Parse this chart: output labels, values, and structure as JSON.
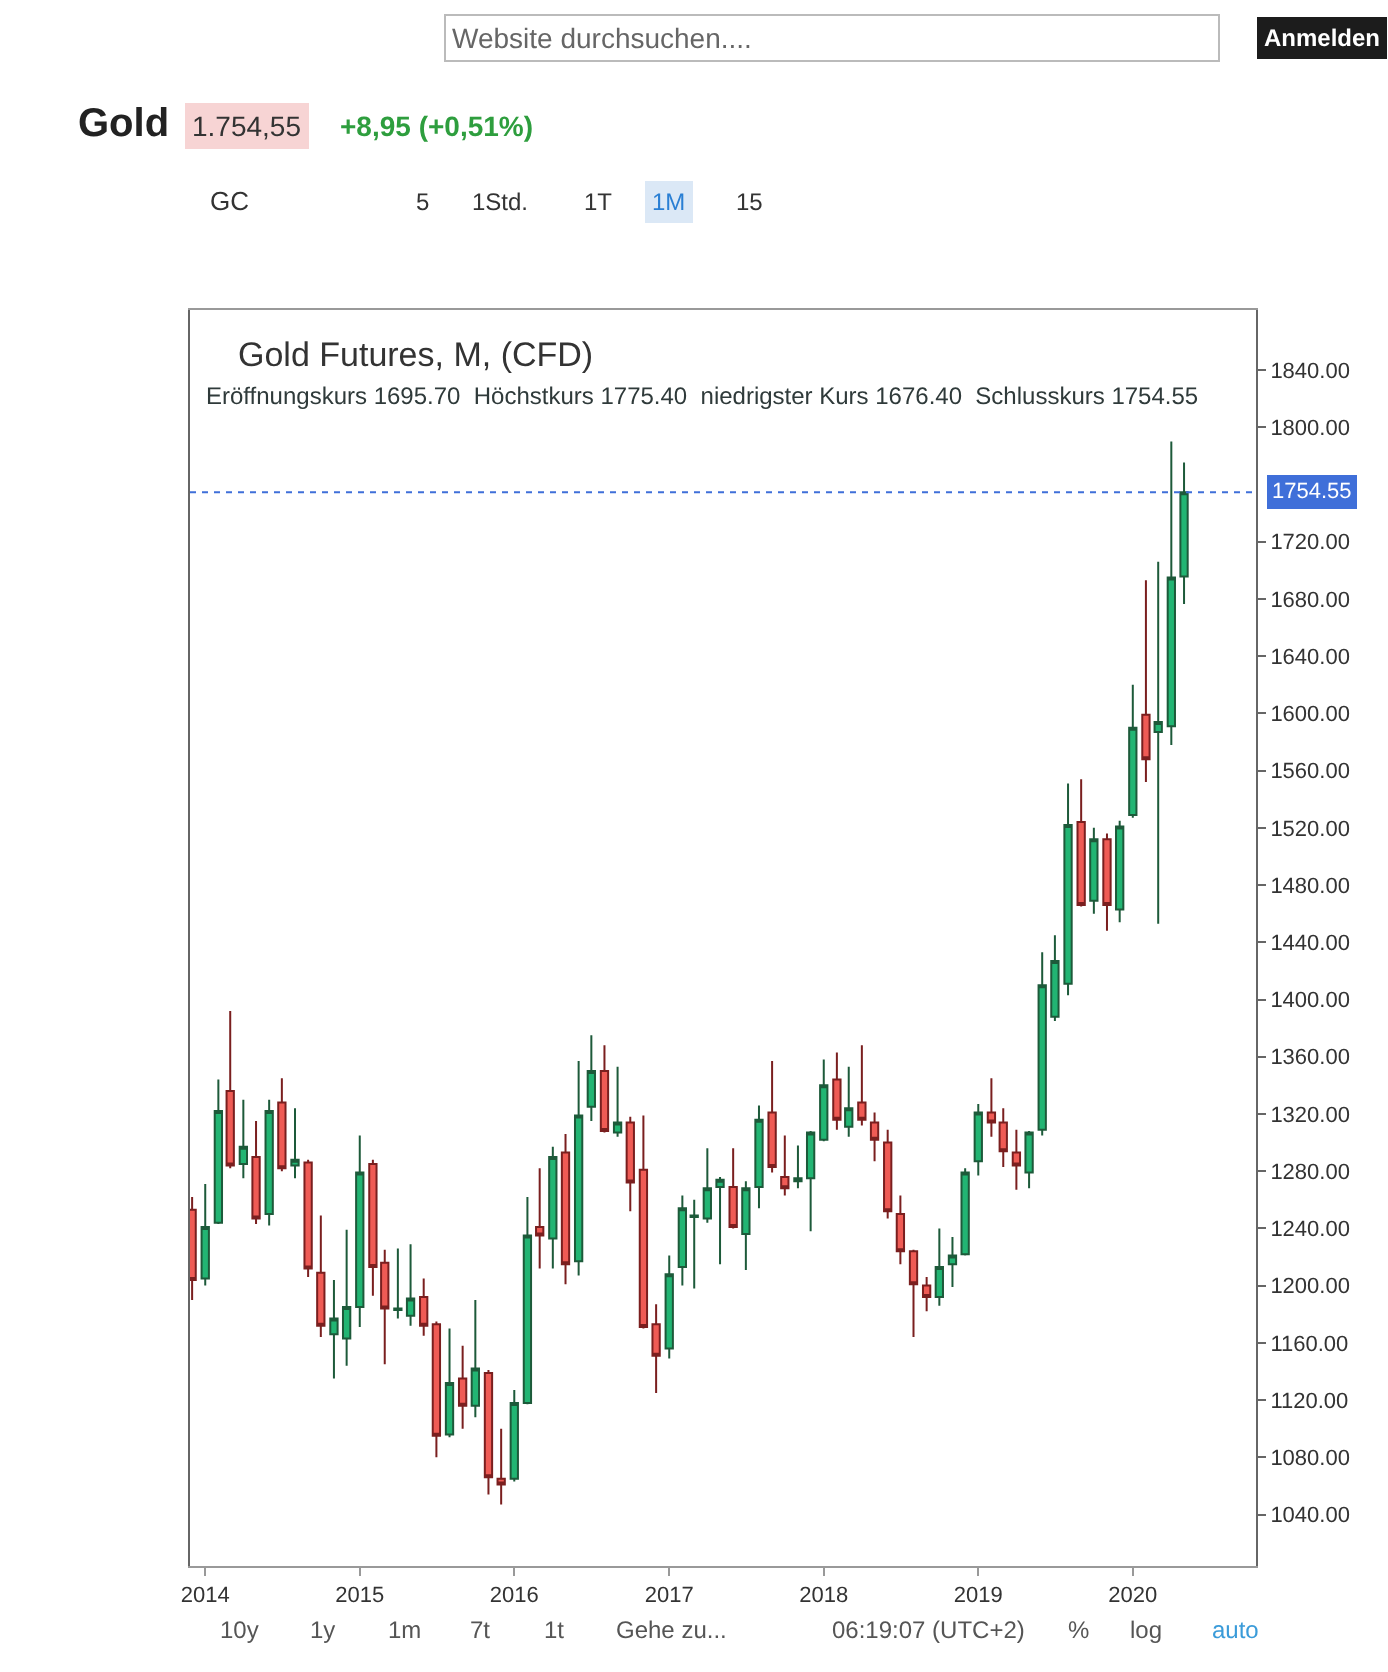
{
  "chart_data": {
    "type": "candlestick",
    "title": "Gold Futures, M, (CFD)",
    "subtitle": "Eröffnungskurs 1695.70  Höchstkurs 1775.40  niedrigster Kurs 1676.40  Schlusskurs 1754.55",
    "annotations": [
      "Gold",
      "1.754,55",
      "+8,95 (+0,51%)",
      "Website durchsuchen....",
      "Anmelden",
      "GC",
      "5",
      "1Std.",
      "1T",
      "1M",
      "15",
      "10y",
      "1y",
      "1m",
      "7t",
      "1t",
      "Gehe zu...",
      "06:19:07 (UTC+2)",
      "%",
      "log",
      "auto"
    ],
    "x": [
      "2013-12",
      "2014-01",
      "2014-02",
      "2014-03",
      "2014-04",
      "2014-05",
      "2014-06",
      "2014-07",
      "2014-08",
      "2014-09",
      "2014-10",
      "2014-11",
      "2014-12",
      "2015-01",
      "2015-02",
      "2015-03",
      "2015-04",
      "2015-05",
      "2015-06",
      "2015-07",
      "2015-08",
      "2015-09",
      "2015-10",
      "2015-11",
      "2015-12",
      "2016-01",
      "2016-02",
      "2016-03",
      "2016-04",
      "2016-05",
      "2016-06",
      "2016-07",
      "2016-08",
      "2016-09",
      "2016-10",
      "2016-11",
      "2016-12",
      "2017-01",
      "2017-02",
      "2017-03",
      "2017-04",
      "2017-05",
      "2017-06",
      "2017-07",
      "2017-08",
      "2017-09",
      "2017-10",
      "2017-11",
      "2017-12",
      "2018-01",
      "2018-02",
      "2018-03",
      "2018-04",
      "2018-05",
      "2018-06",
      "2018-07",
      "2018-08",
      "2018-09",
      "2018-10",
      "2018-11",
      "2018-12",
      "2019-01",
      "2019-02",
      "2019-03",
      "2019-04",
      "2019-05",
      "2019-06",
      "2019-07",
      "2019-08",
      "2019-09",
      "2019-10",
      "2019-11",
      "2019-12",
      "2020-01",
      "2020-02",
      "2020-03",
      "2020-04",
      "2020-05"
    ],
    "ohlc": [
      [
        1253,
        1262,
        1190,
        1204
      ],
      [
        1205,
        1271,
        1200,
        1241
      ],
      [
        1244,
        1344,
        1243,
        1322
      ],
      [
        1336,
        1392,
        1282,
        1284
      ],
      [
        1285,
        1330,
        1275,
        1297
      ],
      [
        1290,
        1315,
        1243,
        1247
      ],
      [
        1250,
        1330,
        1242,
        1322
      ],
      [
        1328,
        1345,
        1280,
        1282
      ],
      [
        1284,
        1324,
        1275,
        1288
      ],
      [
        1286,
        1288,
        1206,
        1212
      ],
      [
        1209,
        1249,
        1164,
        1172
      ],
      [
        1166,
        1204,
        1135,
        1177
      ],
      [
        1163,
        1239,
        1144,
        1185
      ],
      [
        1185,
        1305,
        1171,
        1279
      ],
      [
        1285,
        1288,
        1193,
        1213
      ],
      [
        1216,
        1225,
        1145,
        1184
      ],
      [
        1183,
        1226,
        1177,
        1184
      ],
      [
        1179,
        1229,
        1172,
        1191
      ],
      [
        1192,
        1205,
        1165,
        1172
      ],
      [
        1173,
        1175,
        1080,
        1095
      ],
      [
        1096,
        1170,
        1094,
        1132
      ],
      [
        1135,
        1158,
        1100,
        1116
      ],
      [
        1116,
        1190,
        1108,
        1142
      ],
      [
        1139,
        1141,
        1054,
        1066
      ],
      [
        1065,
        1100,
        1047,
        1061
      ],
      [
        1065,
        1127,
        1063,
        1118
      ],
      [
        1118,
        1262,
        1117,
        1235
      ],
      [
        1241,
        1282,
        1212,
        1235
      ],
      [
        1233,
        1297,
        1212,
        1290
      ],
      [
        1293,
        1306,
        1201,
        1215
      ],
      [
        1217,
        1357,
        1207,
        1319
      ],
      [
        1325,
        1375,
        1315,
        1350
      ],
      [
        1350,
        1368,
        1307,
        1308
      ],
      [
        1307,
        1353,
        1304,
        1314
      ],
      [
        1314,
        1318,
        1252,
        1272
      ],
      [
        1281,
        1319,
        1170,
        1171
      ],
      [
        1173,
        1187,
        1125,
        1151
      ],
      [
        1156,
        1221,
        1149,
        1208
      ],
      [
        1213,
        1263,
        1200,
        1254
      ],
      [
        1248,
        1260,
        1198,
        1249
      ],
      [
        1247,
        1296,
        1244,
        1268
      ],
      [
        1269,
        1276,
        1215,
        1274
      ],
      [
        1269,
        1296,
        1240,
        1241
      ],
      [
        1236,
        1273,
        1211,
        1268
      ],
      [
        1269,
        1326,
        1254,
        1316
      ],
      [
        1321,
        1357,
        1279,
        1283
      ],
      [
        1276,
        1305,
        1263,
        1268
      ],
      [
        1273,
        1298,
        1268,
        1275
      ],
      [
        1275,
        1308,
        1238,
        1307
      ],
      [
        1302,
        1358,
        1301,
        1340
      ],
      [
        1344,
        1363,
        1309,
        1316
      ],
      [
        1311,
        1353,
        1304,
        1324
      ],
      [
        1328,
        1368,
        1312,
        1316
      ],
      [
        1314,
        1321,
        1287,
        1302
      ],
      [
        1300,
        1309,
        1247,
        1252
      ],
      [
        1250,
        1263,
        1215,
        1224
      ],
      [
        1224,
        1225,
        1164,
        1201
      ],
      [
        1200,
        1206,
        1182,
        1192
      ],
      [
        1192,
        1240,
        1186,
        1213
      ],
      [
        1215,
        1234,
        1199,
        1221
      ],
      [
        1222,
        1282,
        1221,
        1279
      ],
      [
        1287,
        1327,
        1277,
        1321
      ],
      [
        1321,
        1345,
        1304,
        1314
      ],
      [
        1314,
        1324,
        1283,
        1294
      ],
      [
        1293,
        1309,
        1267,
        1284
      ],
      [
        1279,
        1308,
        1268,
        1307
      ],
      [
        1309,
        1433,
        1305,
        1410
      ],
      [
        1388,
        1445,
        1385,
        1427
      ],
      [
        1411,
        1551,
        1403,
        1522
      ],
      [
        1524,
        1554,
        1465,
        1466
      ],
      [
        1469,
        1520,
        1460,
        1512
      ],
      [
        1512,
        1516,
        1448,
        1466
      ],
      [
        1463,
        1525,
        1454,
        1521
      ],
      [
        1529,
        1620,
        1527,
        1590
      ],
      [
        1599,
        1693,
        1552,
        1568
      ],
      [
        1587,
        1706,
        1453,
        1594
      ],
      [
        1591,
        1790,
        1578,
        1695
      ],
      [
        1695.7,
        1775.4,
        1676.4,
        1754.55
      ]
    ],
    "xlim": [
      "2013-11-26",
      "2020-10-18"
    ],
    "xticks": [
      "2014",
      "2015",
      "2016",
      "2017",
      "2018",
      "2019",
      "2020"
    ],
    "ylim": [
      1004,
      1882
    ],
    "yticks": [
      {
        "value": 1040,
        "label": "1040.00"
      },
      {
        "value": 1080,
        "label": "1080.00"
      },
      {
        "value": 1120,
        "label": "1120.00"
      },
      {
        "value": 1160,
        "label": "1160.00"
      },
      {
        "value": 1200,
        "label": "1200.00"
      },
      {
        "value": 1240,
        "label": "1240.00"
      },
      {
        "value": 1280,
        "label": "1280.00"
      },
      {
        "value": 1320,
        "label": "1320.00"
      },
      {
        "value": 1360,
        "label": "1360.00"
      },
      {
        "value": 1400,
        "label": "1400.00"
      },
      {
        "value": 1440,
        "label": "1440.00"
      },
      {
        "value": 1480,
        "label": "1480.00"
      },
      {
        "value": 1520,
        "label": "1520.00"
      },
      {
        "value": 1560,
        "label": "1560.00"
      },
      {
        "value": 1600,
        "label": "1600.00"
      },
      {
        "value": 1640,
        "label": "1640.00"
      },
      {
        "value": 1680,
        "label": "1680.00"
      },
      {
        "value": 1720,
        "label": "1720.00"
      },
      {
        "value": 1800,
        "label": "1800.00"
      },
      {
        "value": 1840,
        "label": "1840.00"
      }
    ],
    "ref_lines": [
      {
        "axis": "y",
        "value": 1754.55,
        "label": "1754.55",
        "color": "#3f6fd9",
        "line_style": "dotted"
      }
    ]
  }
}
